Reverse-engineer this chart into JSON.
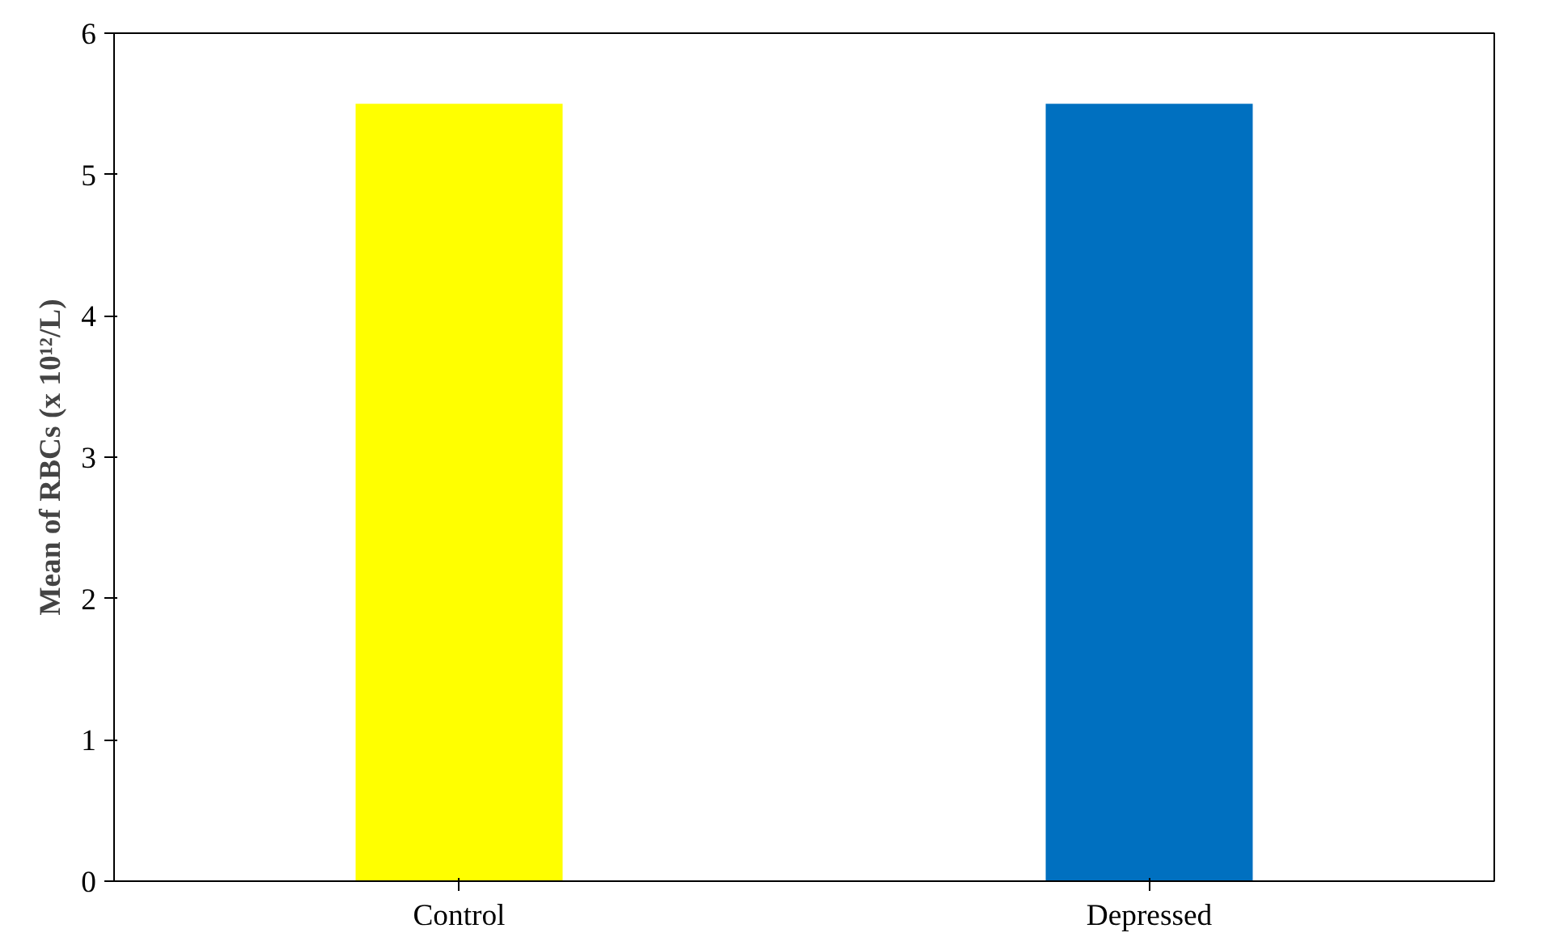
{
  "chart_data": {
    "type": "bar",
    "ylabel": "Mean of RBCs (x 10¹²/L)",
    "categories": [
      "Control",
      "Depressed"
    ],
    "values": [
      5.5,
      5.5
    ],
    "colors": [
      "#ffff00",
      "#0070c0"
    ],
    "ylim": [
      0,
      6
    ],
    "yticks": [
      0,
      1,
      2,
      3,
      4,
      5,
      6
    ],
    "grid": false
  }
}
